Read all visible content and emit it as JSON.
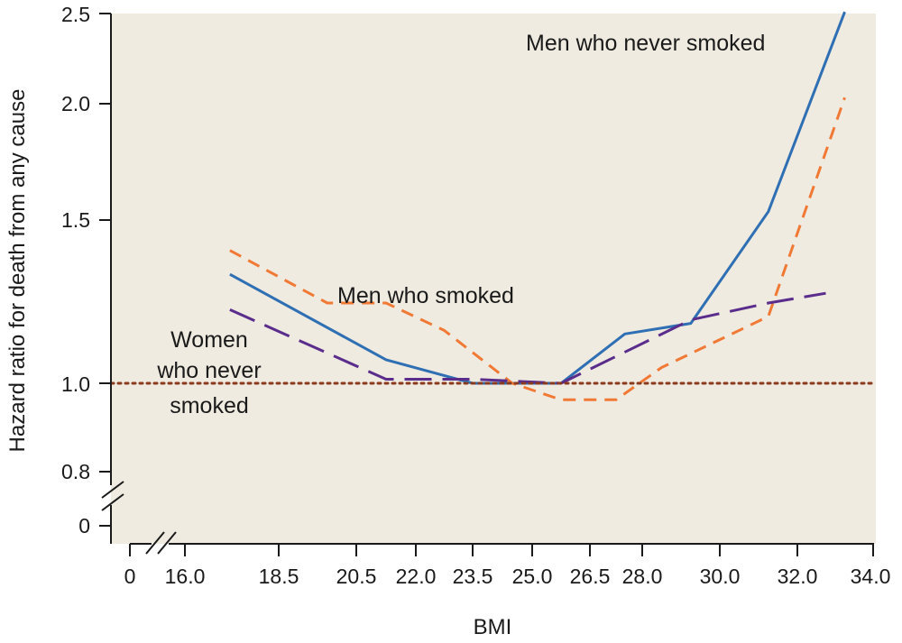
{
  "chart_data": {
    "type": "line",
    "xlabel": "BMI",
    "ylabel": "Hazard ratio for death from any cause",
    "x_tick_labels": [
      "0",
      "16.0",
      "18.5",
      "20.5",
      "22.0",
      "23.5",
      "25.0",
      "26.5",
      "28.0",
      "30.0",
      "32.0",
      "34.0"
    ],
    "y_tick_labels": [
      "0",
      "0.8",
      "1.0",
      "1.5",
      "2.0",
      "2.5"
    ],
    "y_scale": "log",
    "ylim": [
      0.8,
      2.5
    ],
    "axis_breaks": true,
    "grid": false,
    "background_color": "#efebe0",
    "series": [
      {
        "id": "men-never-smoked",
        "color": "#2f6fb3",
        "dash": "solid",
        "x": [
          17.2,
          21.25,
          23.5,
          25.75,
          27.5,
          29.25,
          31.25,
          33.25
        ],
        "y": [
          1.31,
          1.06,
          1.0,
          1.0,
          1.13,
          1.16,
          1.53,
          2.51
        ]
      },
      {
        "id": "men-smoked",
        "color": "#f07a35",
        "dash": "short",
        "x": [
          17.2,
          19.75,
          21.25,
          22.75,
          24.5,
          25.75,
          27.25,
          28.5,
          31.25,
          33.25
        ],
        "y": [
          1.39,
          1.22,
          1.22,
          1.14,
          1.0,
          0.96,
          0.96,
          1.04,
          1.18,
          2.03
        ]
      },
      {
        "id": "women-never-smoked",
        "color": "#5a2d8c",
        "dash": "long",
        "x": [
          17.2,
          21.25,
          23.5,
          25.75,
          29.25,
          31.25,
          32.75
        ],
        "y": [
          1.2,
          1.01,
          1.01,
          1.0,
          1.17,
          1.22,
          1.25
        ]
      },
      {
        "id": "reference",
        "color": "#8b3a1e",
        "dash": "dotted",
        "x": [
          15.0,
          34.0
        ],
        "y": [
          1.0,
          1.0
        ]
      }
    ],
    "annotations": {
      "men_never_smoked": "Men who never smoked",
      "men_smoked": "Men who smoked",
      "women_never_smoked": [
        "Women",
        "who never",
        "smoked"
      ]
    }
  }
}
